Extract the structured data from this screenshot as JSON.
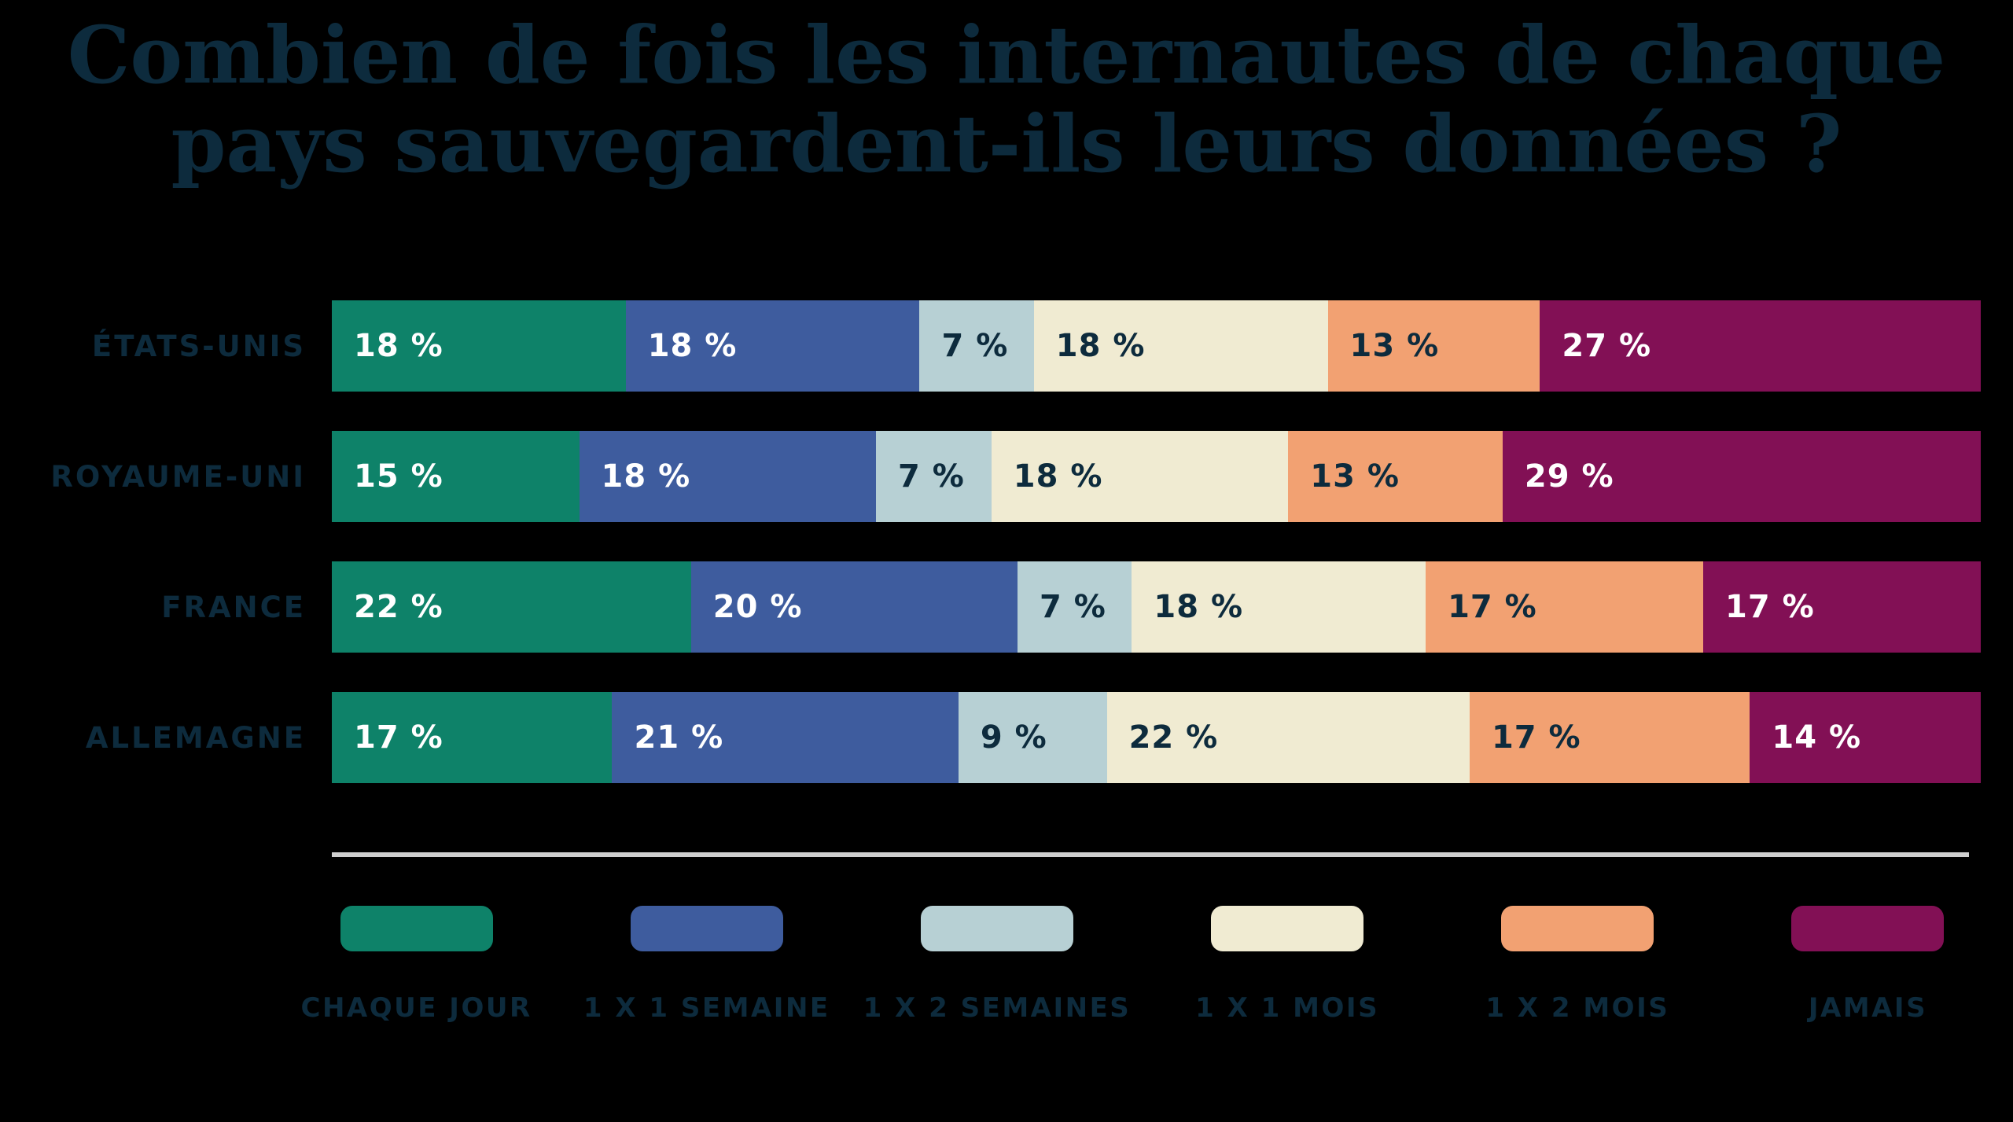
{
  "title": {
    "line1": "Combien de fois les internautes de chaque",
    "line2": "pays sauvegardent-ils leurs données ?"
  },
  "colors": {
    "background": "#000000",
    "heading_text": "#0d2b3d",
    "divider": "#cfcfcf",
    "value_text_dark": "#0d2b3d",
    "value_text_light": "#ffffff"
  },
  "chart_data": {
    "type": "bar",
    "stacked": true,
    "orientation": "horizontal",
    "unit": "%",
    "title": "Combien de fois les internautes de chaque pays sauvegardent-ils leurs données ?",
    "categories": [
      "ÉTATS-UNIS",
      "ROYAUME-UNI",
      "FRANCE",
      "ALLEMAGNE"
    ],
    "series": [
      {
        "name": "CHAQUE JOUR",
        "color": "#0e8269",
        "text_color": "#ffffff",
        "values": [
          18,
          15,
          22,
          17
        ]
      },
      {
        "name": "1 X 1 SEMAINE",
        "color": "#3e5c9e",
        "text_color": "#ffffff",
        "values": [
          18,
          18,
          20,
          21
        ]
      },
      {
        "name": "1 X 2 SEMAINES",
        "color": "#b7d0d4",
        "text_color": "#0d2b3d",
        "values": [
          7,
          7,
          7,
          9
        ]
      },
      {
        "name": "1 X 1 MOIS",
        "color": "#f0ebd2",
        "text_color": "#0d2b3d",
        "values": [
          18,
          18,
          18,
          22
        ]
      },
      {
        "name": "1 X 2 MOIS",
        "color": "#f2a172",
        "text_color": "#0d2b3d",
        "values": [
          13,
          13,
          17,
          17
        ]
      },
      {
        "name": "JAMAIS",
        "color": "#821055",
        "text_color": "#ffffff",
        "values": [
          27,
          29,
          17,
          14
        ]
      }
    ],
    "value_label_suffix": " %",
    "legend_position": "bottom",
    "grid": false
  }
}
